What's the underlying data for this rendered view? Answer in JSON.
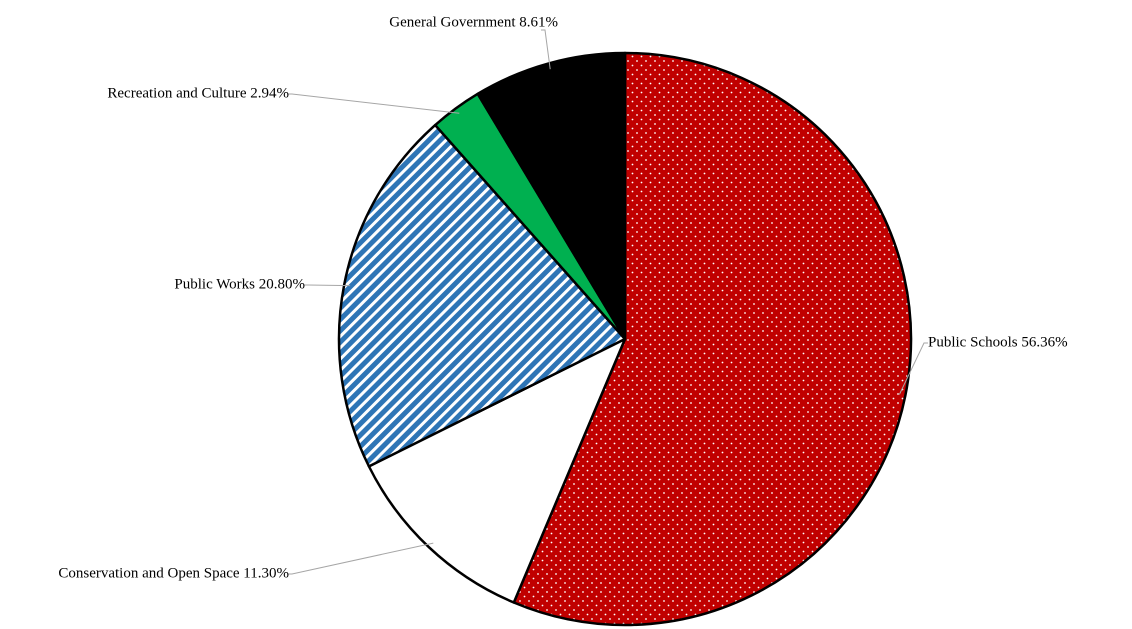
{
  "chart_data": {
    "type": "pie",
    "title": "",
    "slices": [
      {
        "label": "Public Schools",
        "value": 56.36,
        "display": "Public Schools 56.36%",
        "color": "#c00000",
        "pattern": "dots"
      },
      {
        "label": "Conservation and Open Space",
        "value": 11.3,
        "display": "Conservation and Open Space 11.30%",
        "color": "#ffffff",
        "pattern": "none"
      },
      {
        "label": "Public Works",
        "value": 20.8,
        "display": "Public Works 20.80%",
        "color": "#2e75b6",
        "pattern": "diagonal-stripes"
      },
      {
        "label": "Recreation and Culture",
        "value": 2.94,
        "display": "Recreation and Culture 2.94%",
        "color": "#00b050",
        "pattern": "none"
      },
      {
        "label": "General Government",
        "value": 8.61,
        "display": "General Government 8.61%",
        "color": "#000000",
        "pattern": "none"
      }
    ],
    "start_angle_deg": 0,
    "direction": "clockwise",
    "legend": "none",
    "data_labels": "outside-with-leader-lines"
  }
}
